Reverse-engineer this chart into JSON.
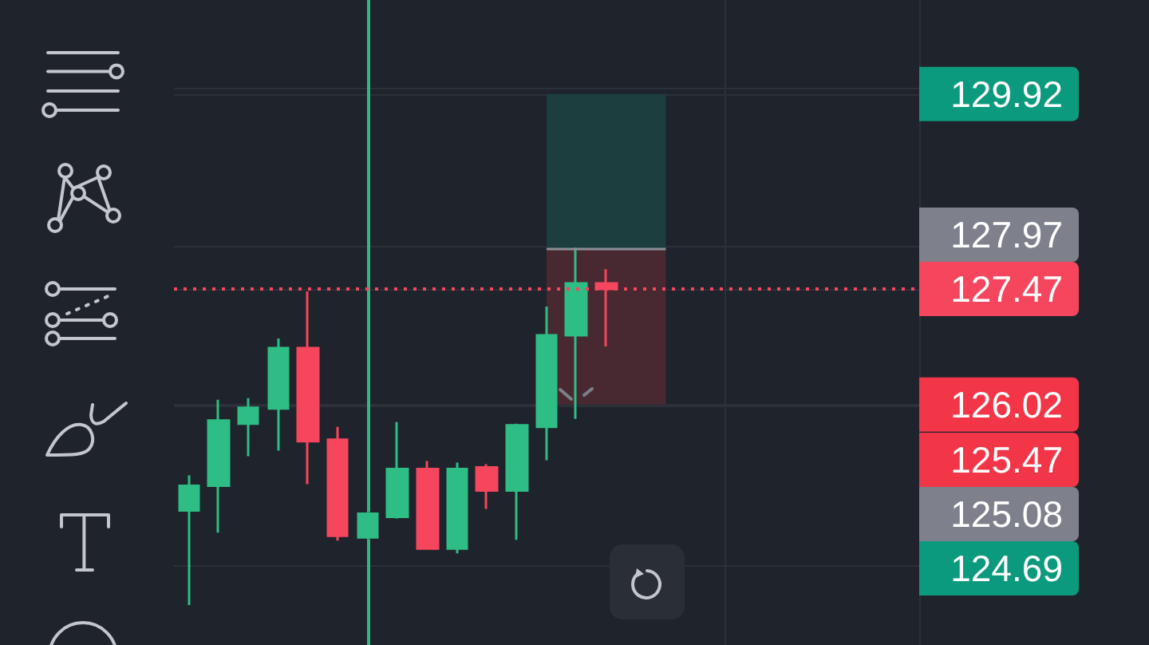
{
  "chart_data": {
    "type": "candlestick",
    "categories": [
      null,
      null,
      null,
      null,
      null,
      null,
      null,
      null,
      null,
      null,
      null,
      null,
      null,
      null,
      null,
      null,
      null,
      null,
      null,
      null,
      null,
      null,
      null,
      null,
      null
    ],
    "ohlc": [
      [
        124.69,
        125.13,
        123.5,
        125.0
      ],
      [
        125.0,
        126.08,
        124.41,
        125.82
      ],
      [
        125.78,
        126.1,
        125.37,
        125.98
      ],
      [
        125.97,
        126.85,
        125.44,
        126.73
      ],
      [
        126.73,
        127.44,
        125.02,
        125.56
      ],
      [
        125.58,
        125.74,
        124.31,
        124.37
      ],
      [
        124.35,
        124.67,
        124.33,
        124.65
      ],
      [
        124.61,
        125.8,
        124.59,
        125.21
      ],
      [
        125.21,
        125.31,
        124.21,
        124.21
      ],
      [
        124.21,
        125.29,
        124.15,
        125.21
      ],
      [
        125.23,
        125.27,
        124.71,
        124.94
      ],
      [
        124.94,
        125.78,
        124.32,
        125.76
      ],
      [
        125.74,
        127.25,
        125.32,
        126.89
      ],
      [
        126.89,
        127.99,
        125.84,
        127.54
      ],
      [
        127.54,
        127.72,
        126.75,
        127.47
      ],
      null,
      null,
      null,
      null,
      null,
      null,
      null,
      null,
      null,
      null
    ],
    "colors": [
      "#2ebd85",
      "#2ebd85",
      "#2ebd85",
      "#2ebd85",
      "#f6465d",
      "#f6465d",
      "#2ebd85",
      "#2ebd85",
      "#f6465d",
      "#2ebd85",
      "#f6465d",
      "#2ebd85",
      "#2ebd85",
      "#2ebd85",
      "#f6465d",
      null,
      null,
      null,
      null,
      null,
      null,
      null,
      null,
      null,
      null
    ],
    "ylim": [
      123,
      131.1
    ],
    "yticks": [
      {
        "value": 124,
        "label": null
      },
      {
        "value": 126,
        "label": null
      },
      {
        "value": 126.02,
        "label": "126.02"
      },
      {
        "value": 127.47,
        "label": "127.47"
      },
      {
        "value": 128,
        "label": null
      },
      {
        "value": 129.92,
        "label": "129.92"
      },
      {
        "value": 130,
        "label": null
      }
    ],
    "grid": true,
    "tick_labels": "y",
    "ref_lines": [
      {
        "axis": "y",
        "value": 127.47,
        "color": "#f6465d",
        "line_style": "dotted"
      },
      {
        "axis": "y",
        "value": 127.97,
        "color": "#8b8e96",
        "line_style": "solid"
      }
    ],
    "bands": [
      {
        "axis": "y",
        "from": 127.97,
        "to": 129.92,
        "color": "#1c3e3e"
      },
      {
        "axis": "y",
        "from": 126.02,
        "to": 127.97,
        "color": "#482932"
      }
    ],
    "annotations": [
      "127.97",
      "125.47",
      "125.08",
      "124.69"
    ]
  }
}
